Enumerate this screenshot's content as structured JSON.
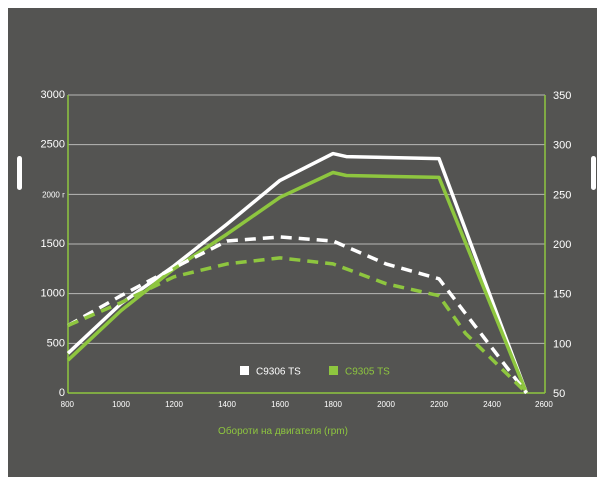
{
  "chart_data": {
    "type": "line",
    "title": "",
    "xlabel": "Обороти на двигателя (rpm)",
    "x_ticks": [
      "800",
      "1000",
      "1200",
      "1400",
      "1600",
      "1800",
      "2000",
      "2200",
      "2400",
      "2600"
    ],
    "y_left_ticks": [
      "0",
      "500",
      "1000",
      "1500",
      "2000 г",
      "2500",
      "3000"
    ],
    "y_right_ticks": [
      "50",
      "100",
      "150",
      "200",
      "250",
      "300",
      "350"
    ],
    "xlim": [
      800,
      2600
    ],
    "ylim_left": [
      0,
      3000
    ],
    "ylim_right": [
      50,
      350
    ],
    "grid": true,
    "legend_position": "bottom-center",
    "legend": [
      {
        "label": "C9306 TS",
        "swatch_color": "#ffffff",
        "text_color": "#ffffff"
      },
      {
        "label": "C9305 TS",
        "swatch_color": "#8ec63f",
        "text_color": "#8ec63f"
      }
    ],
    "series": [
      {
        "name": "C9306 TS",
        "metric": "torque",
        "axis": "left",
        "style": "solid",
        "color": "#ffffff",
        "points": [
          [
            800,
            400
          ],
          [
            1000,
            900
          ],
          [
            1200,
            1280
          ],
          [
            1400,
            1700
          ],
          [
            1600,
            2140
          ],
          [
            1800,
            2410
          ],
          [
            1850,
            2380
          ],
          [
            2200,
            2360
          ],
          [
            2530,
            0
          ]
        ]
      },
      {
        "name": "C9305 TS",
        "metric": "torque",
        "axis": "left",
        "style": "solid",
        "color": "#8ec63f",
        "points": [
          [
            800,
            330
          ],
          [
            1000,
            830
          ],
          [
            1200,
            1250
          ],
          [
            1400,
            1600
          ],
          [
            1600,
            1970
          ],
          [
            1800,
            2220
          ],
          [
            1850,
            2190
          ],
          [
            2200,
            2170
          ],
          [
            2530,
            0
          ]
        ]
      },
      {
        "name": "C9306 TS",
        "metric": "power",
        "axis": "right",
        "style": "dashed",
        "color": "#ffffff",
        "points": [
          [
            800,
            118
          ],
          [
            1000,
            148
          ],
          [
            1200,
            176
          ],
          [
            1400,
            203
          ],
          [
            1600,
            207
          ],
          [
            1800,
            203
          ],
          [
            2000,
            180
          ],
          [
            2200,
            165
          ],
          [
            2300,
            130
          ],
          [
            2530,
            50
          ]
        ]
      },
      {
        "name": "C9305 TS",
        "metric": "power",
        "axis": "right",
        "style": "dashed",
        "color": "#8ec63f",
        "points": [
          [
            800,
            118
          ],
          [
            1000,
            141
          ],
          [
            1200,
            167
          ],
          [
            1400,
            180
          ],
          [
            1600,
            186
          ],
          [
            1800,
            180
          ],
          [
            2000,
            160
          ],
          [
            2200,
            148
          ],
          [
            2300,
            110
          ],
          [
            2530,
            50
          ]
        ]
      }
    ]
  }
}
